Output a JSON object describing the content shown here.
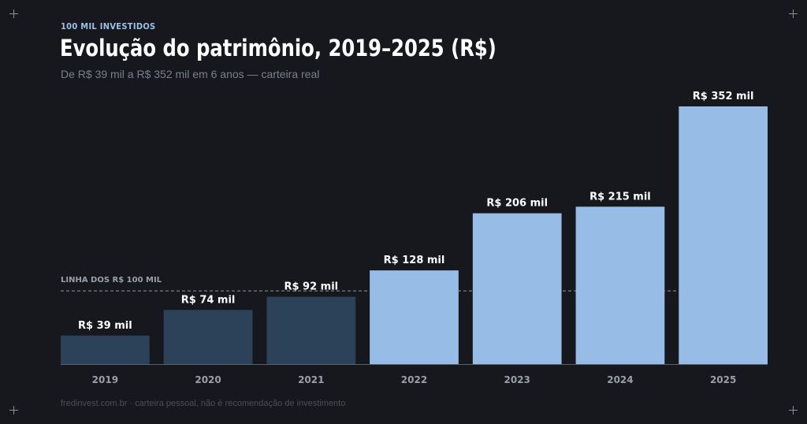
{
  "header": {
    "eyebrow": "100 MIL INVESTIDOS",
    "title": "Evolução do patrimônio, 2019–2025 (R$)",
    "subtitle": "De R$ 39 mil a R$ 352 mil em 6 anos — carteira real"
  },
  "footer": {
    "source": "fredinvest.com.br · carteira pessoal, não é recomendação de investimento"
  },
  "colors": {
    "background": "#16181d",
    "bar_below": "#2b4259",
    "bar_above": "#97bde6",
    "label": "#ffffff",
    "tick": "#9a9fa8",
    "reference": "#8f969f",
    "axis": "#5a5f68"
  },
  "chart_data": {
    "type": "bar",
    "categories": [
      "2019",
      "2020",
      "2021",
      "2022",
      "2023",
      "2024",
      "2025"
    ],
    "values": [
      39,
      74,
      92,
      128,
      206,
      215,
      352
    ],
    "data_labels": [
      "R$ 39 mil",
      "R$ 74 mil",
      "R$ 92 mil",
      "R$ 128 mil",
      "R$ 206 mil",
      "R$ 215 mil",
      "R$ 352 mil"
    ],
    "unit": "R$ mil",
    "ylim": [
      0,
      352
    ],
    "grid": false,
    "reference_line": {
      "value": 100,
      "label": "LINHA DOS R$ 100 MIL"
    }
  }
}
